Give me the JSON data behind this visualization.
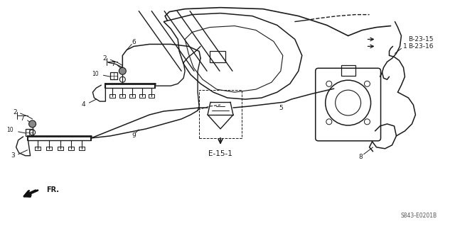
{
  "bg_color": "#ffffff",
  "line_color": "#1a1a1a",
  "figsize": [
    6.4,
    3.19
  ],
  "dpi": 100,
  "ref_label_B2315": "B-23-15",
  "ref_label_B2316": "B-23-16",
  "ref_label_E15": "E-15-1",
  "ref_label_S843": "S843-E0201B",
  "ref_label_FR": "FR."
}
